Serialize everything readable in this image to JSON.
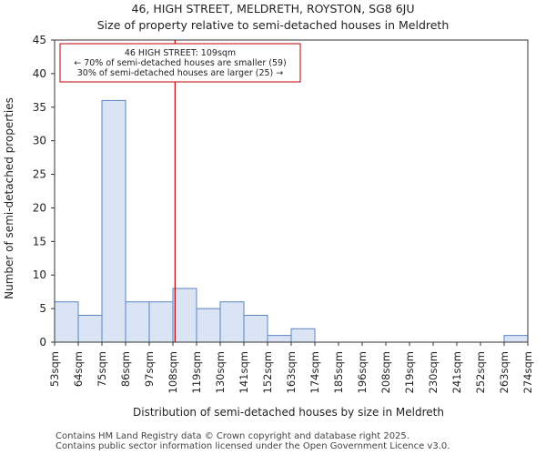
{
  "header": {
    "title_line1": "46, HIGH STREET, MELDRETH, ROYSTON, SG8 6JU",
    "title_line2": "Size of property relative to semi-detached houses in Meldreth"
  },
  "annotation": {
    "line1": "46 HIGH STREET: 109sqm",
    "line2": "← 70% of semi-detached houses are smaller (59)",
    "line3": "30% of semi-detached houses are larger (25) →"
  },
  "footer": {
    "line1": "Contains HM Land Registry data © Crown copyright and database right 2025.",
    "line2": "Contains public sector information licensed under the Open Government Licence v3.0."
  },
  "colors": {
    "bar_fill": "#dbe4f4",
    "bar_stroke": "#5a84c5",
    "marker": "#c00000",
    "axis": "#333333"
  },
  "chart_data": {
    "type": "bar",
    "xlabel": "Distribution of semi-detached houses by size in Meldreth",
    "ylabel": "Number of semi-detached properties",
    "ylim": [
      0,
      45
    ],
    "yticks": [
      0,
      5,
      10,
      15,
      20,
      25,
      30,
      35,
      40,
      45
    ],
    "bin_edges": [
      53,
      64,
      75,
      86,
      97,
      108,
      119,
      130,
      141,
      152,
      163,
      174,
      185,
      196,
      208,
      219,
      230,
      241,
      252,
      263,
      274
    ],
    "tick_labels": [
      "53sqm",
      "64sqm",
      "75sqm",
      "86sqm",
      "97sqm",
      "108sqm",
      "119sqm",
      "130sqm",
      "141sqm",
      "152sqm",
      "163sqm",
      "174sqm",
      "185sqm",
      "196sqm",
      "208sqm",
      "219sqm",
      "230sqm",
      "241sqm",
      "252sqm",
      "263sqm",
      "274sqm"
    ],
    "values": [
      6,
      4,
      36,
      6,
      6,
      8,
      5,
      6,
      4,
      1,
      2,
      0,
      0,
      0,
      0,
      0,
      0,
      0,
      0,
      1
    ],
    "marker_value": 109,
    "marker_label": "46 HIGH STREET: 109sqm",
    "grid": false
  }
}
